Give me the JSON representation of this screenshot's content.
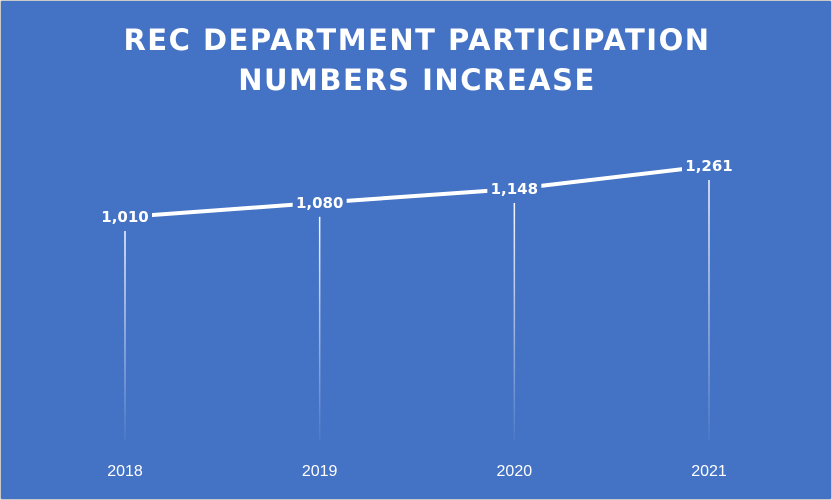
{
  "chart_data": {
    "type": "line",
    "title_lines": [
      "REC DEPARTMENT PARTICIPATION",
      "NUMBERS INCREASE"
    ],
    "categories": [
      "2018",
      "2019",
      "2020",
      "2021"
    ],
    "values": [
      1010,
      1080,
      1148,
      1261
    ],
    "data_labels": [
      "1,010",
      "1,080",
      "1,148",
      "1,261"
    ],
    "legend": "none",
    "grid": false,
    "drop_lines": true,
    "colors": {
      "background": "#4472c4",
      "line": "#ffffff",
      "text": "#ffffff"
    }
  }
}
